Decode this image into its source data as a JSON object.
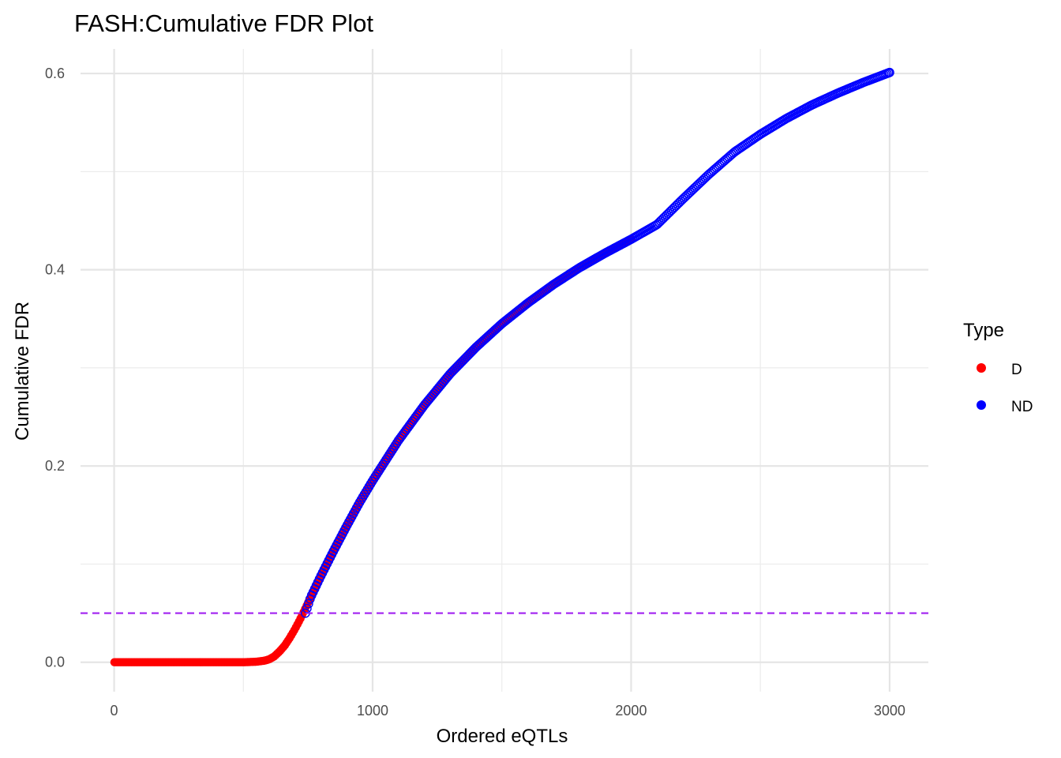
{
  "chart_data": {
    "type": "scatter",
    "title": "FASH:Cumulative FDR Plot",
    "xlabel": "Ordered eQTLs",
    "ylabel": "Cumulative FDR",
    "xlim": [
      -130,
      3150
    ],
    "ylim": [
      -0.03,
      0.625
    ],
    "x_ticks": [
      "0",
      "1000",
      "2000",
      "3000"
    ],
    "x_tick_values": [
      0,
      1000,
      2000,
      3000
    ],
    "x_minor": [
      500,
      1500,
      2500
    ],
    "y_ticks": [
      "0.0",
      "0.2",
      "0.4",
      "0.6"
    ],
    "y_tick_values": [
      0,
      0.2,
      0.4,
      0.6
    ],
    "y_minor": [
      0.1,
      0.3,
      0.5
    ],
    "grid": true,
    "legend": {
      "title": "Type",
      "position": "right",
      "entries": [
        {
          "label": "D",
          "color": "#ff0000"
        },
        {
          "label": "ND",
          "color": "#0000ff"
        }
      ]
    },
    "reference_line": {
      "y": 0.05,
      "style": "dashed",
      "color": "#a020f0"
    },
    "n_points": 3000,
    "series": [
      {
        "name": "D",
        "color": "#ff0000",
        "x": [
          1,
          100,
          200,
          300,
          400,
          500,
          550,
          580,
          600,
          620,
          640,
          660,
          680,
          700,
          720,
          740,
          760,
          800,
          850,
          900,
          950,
          1000,
          1100,
          1200,
          1300,
          1400,
          1500,
          1600,
          1700,
          1800,
          1900,
          2000
        ],
        "y": [
          0,
          0,
          0,
          0,
          0,
          0,
          0.0005,
          0.0015,
          0.003,
          0.006,
          0.011,
          0.017,
          0.025,
          0.034,
          0.044,
          0.055,
          0.066,
          0.088,
          0.114,
          0.139,
          0.163,
          0.185,
          0.226,
          0.262,
          0.294,
          0.321,
          0.345,
          0.366,
          0.385,
          0.402,
          0.417,
          0.431
        ]
      },
      {
        "name": "ND",
        "color": "#0000ff",
        "x": [
          740,
          760,
          800,
          850,
          900,
          950,
          1000,
          1100,
          1200,
          1300,
          1400,
          1500,
          1600,
          1700,
          1800,
          1900,
          2000,
          2100,
          2200,
          2300,
          2400,
          2500,
          2600,
          2700,
          2800,
          2900,
          3000
        ],
        "y": [
          0.05,
          0.066,
          0.088,
          0.114,
          0.139,
          0.163,
          0.185,
          0.226,
          0.262,
          0.294,
          0.321,
          0.345,
          0.366,
          0.385,
          0.402,
          0.417,
          0.431,
          0.446,
          0.472,
          0.497,
          0.52,
          0.538,
          0.554,
          0.568,
          0.58,
          0.591,
          0.601
        ]
      }
    ]
  }
}
